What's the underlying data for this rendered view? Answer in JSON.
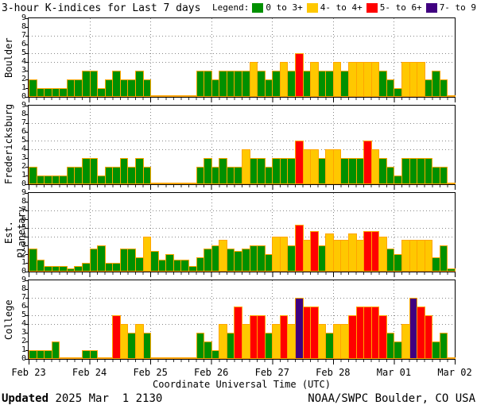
{
  "chart_data": {
    "type": "bar",
    "title": "3-hour K-indices for Last 7 days",
    "legend_title": "Legend:",
    "legend": [
      {
        "label": "0 to 3+",
        "color": "#009000"
      },
      {
        "label": "4- to 4+",
        "color": "#FFC800"
      },
      {
        "label": "5- to 6+",
        "color": "#FF0000"
      },
      {
        "label": "7- to 9",
        "color": "#400080"
      }
    ],
    "xlabel": "Coordinate Universal Time (UTC)",
    "x_dates": [
      "Feb 23",
      "Feb 24",
      "Feb 25",
      "Feb 26",
      "Feb 27",
      "Feb 28",
      "Mar 01",
      "Mar 02"
    ],
    "ylim": [
      0,
      9
    ],
    "y_dotted_gridlines": [
      4,
      5,
      7
    ],
    "bars_per_day": 8,
    "color_thresholds": {
      "yellow_min": 3.5,
      "red_min": 4.5,
      "purple_min": 6.5
    },
    "colors": {
      "green": "#009000",
      "yellow": "#FFC800",
      "red": "#FF0000",
      "purple": "#400080",
      "bar_outline": "#FFA500",
      "grid_dots": "#888888",
      "axis": "#000000",
      "background": "#FFFFFF"
    },
    "panels": [
      {
        "station": "Boulder",
        "values": [
          2,
          1,
          1,
          1,
          1,
          2,
          2,
          3,
          3,
          1,
          2,
          3,
          2,
          2,
          3,
          2,
          0,
          0,
          0,
          0,
          0,
          0,
          3,
          3,
          2,
          3,
          3,
          3,
          3,
          4,
          3,
          2,
          3,
          4,
          3,
          5,
          3,
          4,
          3,
          3,
          4,
          3,
          4,
          4,
          4,
          4,
          3,
          2,
          1,
          4,
          4,
          4,
          2,
          3,
          2,
          0
        ]
      },
      {
        "station": "Fredericksburg",
        "values": [
          2,
          1,
          1,
          1,
          1,
          2,
          2,
          3,
          3,
          1,
          2,
          2,
          3,
          2,
          3,
          2,
          0,
          0,
          0,
          0,
          0,
          0,
          2,
          3,
          2,
          3,
          2,
          2,
          4,
          3,
          3,
          2,
          3,
          3,
          3,
          5,
          4,
          4,
          3,
          4,
          4,
          3,
          3,
          3,
          5,
          4,
          3,
          2,
          1,
          3,
          3,
          3,
          3,
          2,
          2,
          0
        ]
      },
      {
        "station": "Est. Planetary",
        "values": [
          2.67,
          1.33,
          0.67,
          0.67,
          0.67,
          0.33,
          0.67,
          1.0,
          2.67,
          3.0,
          1.0,
          1.0,
          2.67,
          2.67,
          1.67,
          4.0,
          2.33,
          1.33,
          2.0,
          1.33,
          1.33,
          0.67,
          1.67,
          2.67,
          3.0,
          3.67,
          2.67,
          2.33,
          2.67,
          3.0,
          3.0,
          2.0,
          4.0,
          4.0,
          3.0,
          5.33,
          3.67,
          4.67,
          3.0,
          4.33,
          3.67,
          3.67,
          4.33,
          3.67,
          4.67,
          4.67,
          4.0,
          2.67,
          2.0,
          3.67,
          3.67,
          3.67,
          3.67,
          1.67,
          3.0,
          0.33
        ]
      },
      {
        "station": "College",
        "values": [
          1,
          1,
          1,
          2,
          0,
          0,
          0,
          1,
          1,
          0,
          0,
          5,
          4,
          3,
          4,
          3,
          0,
          0,
          0,
          0,
          0,
          0,
          3,
          2,
          1,
          4,
          3,
          6,
          4,
          5,
          5,
          3,
          4,
          5,
          4,
          7,
          6,
          6,
          4,
          3,
          4,
          4,
          5,
          6,
          6,
          6,
          5,
          3,
          2,
          4,
          7,
          6,
          5,
          2,
          3,
          0
        ]
      }
    ]
  },
  "footer": {
    "updated_label": "Updated",
    "updated_value": " 2025 Mar  1 2130",
    "credit": "NOAA/SWPC Boulder, CO USA"
  }
}
